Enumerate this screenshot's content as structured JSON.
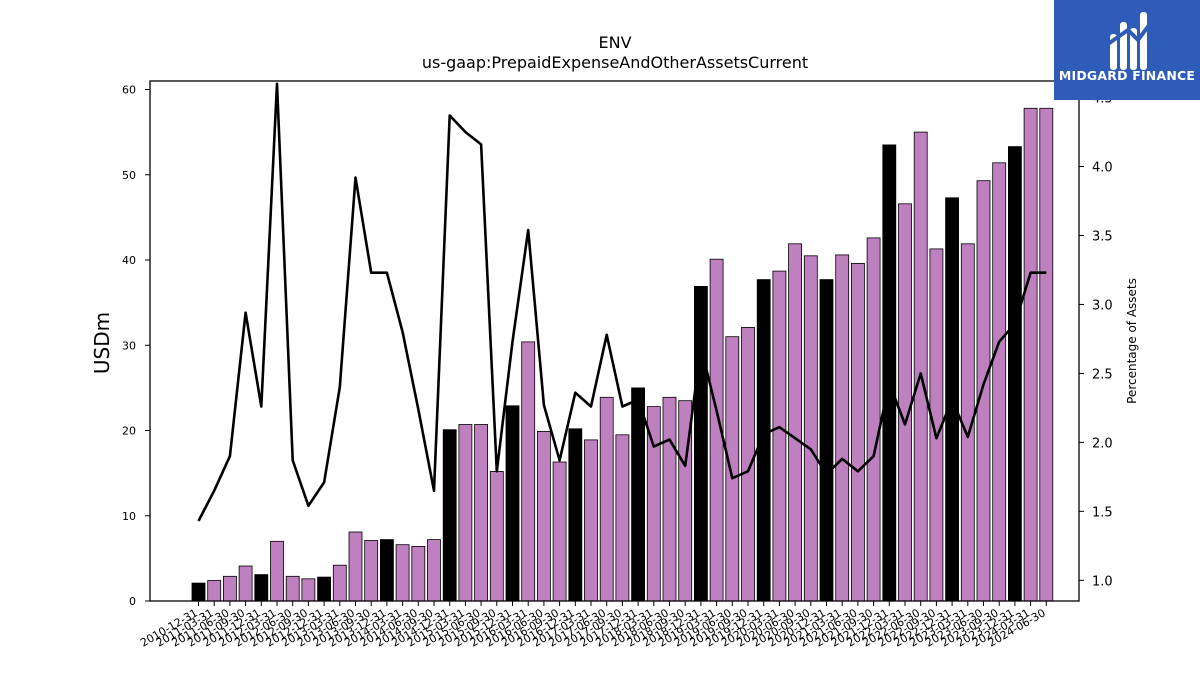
{
  "brand": {
    "name": "MIDGARD FINANCE",
    "color": "#2e5cb8"
  },
  "chart_data": {
    "type": "bar",
    "title": "ENV",
    "subtitle": "us-gaap:PrepaidExpenseAndOtherAssetsCurrent",
    "ylabel": "USDm",
    "y2label": "Percentage of Assets",
    "ylim": [
      0,
      61
    ],
    "y2lim": [
      0.85,
      4.62
    ],
    "yticks": [
      0,
      10,
      20,
      30,
      40,
      50,
      60
    ],
    "y2ticks": [
      "1.0",
      "1.5",
      "2.0",
      "2.5",
      "3.0",
      "3.5",
      "4.0",
      "4.5"
    ],
    "grid": false,
    "colors": {
      "q4_bar": "#000000",
      "other_bar": "#bf80bf",
      "line": "#000000"
    },
    "categories": [
      "2010-12-31",
      "2011-03-31",
      "2011-06-30",
      "2011-09-30",
      "2011-12-31",
      "2012-03-31",
      "2012-06-30",
      "2012-09-30",
      "2012-12-31",
      "2013-03-31",
      "2013-06-30",
      "2013-09-30",
      "2013-12-31",
      "2014-03-31",
      "2014-06-30",
      "2014-09-30",
      "2014-12-31",
      "2015-03-31",
      "2015-06-30",
      "2015-09-30",
      "2015-12-31",
      "2016-03-31",
      "2016-06-30",
      "2016-09-30",
      "2016-12-31",
      "2017-03-31",
      "2017-06-30",
      "2017-09-30",
      "2017-12-31",
      "2018-03-31",
      "2018-06-30",
      "2018-09-30",
      "2018-12-31",
      "2019-03-31",
      "2019-06-30",
      "2019-09-30",
      "2019-12-31",
      "2020-03-31",
      "2020-06-30",
      "2020-09-30",
      "2020-12-31",
      "2021-03-31",
      "2021-06-30",
      "2021-09-30",
      "2021-12-31",
      "2022-03-31",
      "2022-06-30",
      "2022-09-30",
      "2022-12-31",
      "2023-03-31",
      "2023-06-30",
      "2023-09-30",
      "2023-12-31",
      "2024-03-31",
      "2024-06-30"
    ],
    "series": [
      {
        "type": "bar",
        "values": [
          2.1,
          2.4,
          2.9,
          4.1,
          3.1,
          7.0,
          2.9,
          2.6,
          2.8,
          4.2,
          8.1,
          7.1,
          7.2,
          6.6,
          6.4,
          7.2,
          20.1,
          20.7,
          20.7,
          15.2,
          22.9,
          30.4,
          19.9,
          16.3,
          20.2,
          18.9,
          23.9,
          19.5,
          25.0,
          22.8,
          23.9,
          23.5,
          36.9,
          40.1,
          31.0,
          32.1,
          37.7,
          38.7,
          41.9,
          40.5,
          37.7,
          40.6,
          39.6,
          42.6,
          53.5,
          46.6,
          55.0,
          41.3,
          47.3,
          41.9,
          49.3,
          51.4,
          53.3,
          57.8,
          57.8
        ]
      },
      {
        "type": "line",
        "axis": "right",
        "values": [
          1.43,
          1.65,
          1.9,
          2.94,
          2.26,
          4.6,
          1.87,
          1.54,
          1.71,
          2.4,
          3.92,
          3.23,
          3.23,
          2.8,
          2.24,
          1.65,
          4.37,
          4.25,
          4.16,
          1.79,
          2.73,
          3.54,
          2.27,
          1.87,
          2.36,
          2.26,
          2.78,
          2.26,
          2.31,
          1.97,
          2.02,
          1.83,
          2.69,
          2.23,
          1.74,
          1.79,
          2.06,
          2.11,
          2.03,
          1.95,
          1.77,
          1.88,
          1.79,
          1.9,
          2.43,
          2.13,
          2.5,
          2.03,
          2.31,
          2.04,
          2.42,
          2.73,
          2.86,
          3.23,
          3.23
        ]
      }
    ]
  }
}
